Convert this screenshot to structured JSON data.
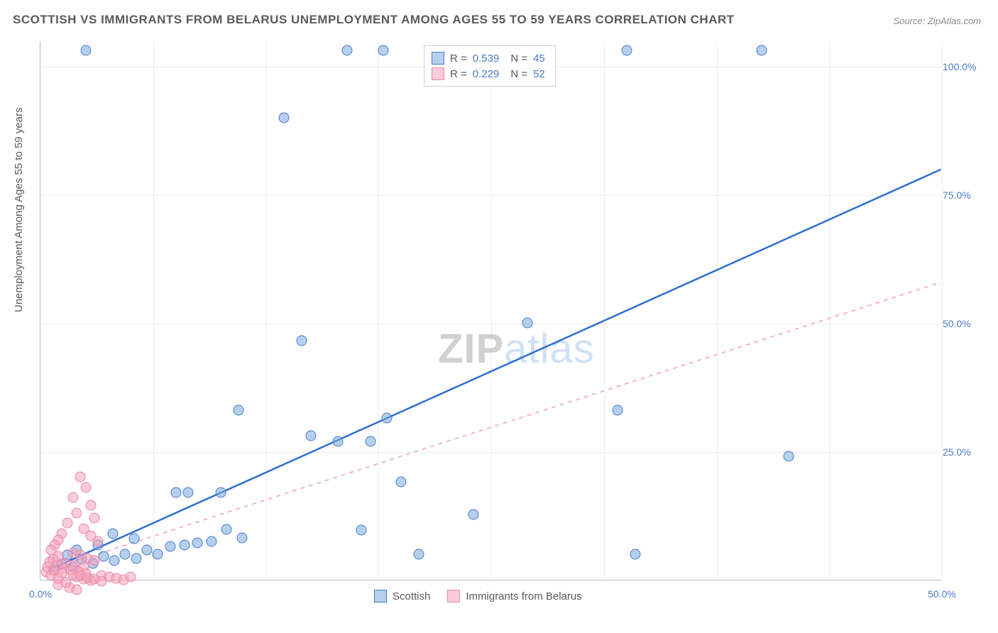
{
  "title": "SCOTTISH VS IMMIGRANTS FROM BELARUS UNEMPLOYMENT AMONG AGES 55 TO 59 YEARS CORRELATION CHART",
  "source": "Source: ZipAtlas.com",
  "ylabel": "Unemployment Among Ages 55 to 59 years",
  "watermark_a": "ZIP",
  "watermark_b": "atlas",
  "chart": {
    "type": "scatter",
    "xlim": [
      0,
      50
    ],
    "ylim": [
      0,
      105
    ],
    "xticks": [
      {
        "v": 0,
        "l": "0.0%"
      },
      {
        "v": 50,
        "l": "50.0%"
      }
    ],
    "yticks": [
      {
        "v": 25,
        "l": "25.0%"
      },
      {
        "v": 50,
        "l": "50.0%"
      },
      {
        "v": 75,
        "l": "75.0%"
      },
      {
        "v": 100,
        "l": "100.0%"
      }
    ],
    "grid_h": [
      25,
      50,
      75,
      100
    ],
    "grid_v": [
      6.25,
      12.5,
      18.75,
      25,
      31.25,
      37.5,
      43.75,
      50
    ],
    "background_color": "#ffffff",
    "grid_color": "#ececec",
    "axis_color": "#bdbdbd",
    "tick_color": "#4a7ac7",
    "marker_size": 15,
    "series": [
      {
        "name": "Scottish",
        "color_fill": "rgba(120,170,225,0.55)",
        "color_stroke": "#4a7ac7",
        "R": "0.539",
        "N": "45",
        "trend": {
          "x1": 0.5,
          "y1": 2,
          "x2": 50,
          "y2": 80,
          "width": 2.5,
          "dash": "none",
          "color": "#2f6ed1"
        },
        "points": [
          [
            17.0,
            103
          ],
          [
            19.0,
            103
          ],
          [
            32.5,
            103
          ],
          [
            40.0,
            103
          ],
          [
            2.5,
            103
          ],
          [
            13.5,
            90
          ],
          [
            27.0,
            50
          ],
          [
            14.5,
            46.5
          ],
          [
            32.0,
            33
          ],
          [
            11.0,
            33
          ],
          [
            15.0,
            28
          ],
          [
            16.5,
            27
          ],
          [
            18.3,
            27
          ],
          [
            19.2,
            31.5
          ],
          [
            41.5,
            24
          ],
          [
            20.0,
            19
          ],
          [
            24.0,
            12.7
          ],
          [
            7.5,
            17
          ],
          [
            8.2,
            17
          ],
          [
            10.0,
            17
          ],
          [
            33.0,
            5
          ],
          [
            21.0,
            5
          ],
          [
            17.8,
            9.7
          ],
          [
            0.7,
            2
          ],
          [
            1.2,
            3
          ],
          [
            1.8,
            2.5
          ],
          [
            2.3,
            4
          ],
          [
            2.9,
            3.2
          ],
          [
            3.5,
            4.5
          ],
          [
            4.1,
            3.8
          ],
          [
            4.7,
            5
          ],
          [
            5.3,
            4.2
          ],
          [
            5.9,
            5.8
          ],
          [
            6.5,
            5
          ],
          [
            7.2,
            6.5
          ],
          [
            8.0,
            6.8
          ],
          [
            8.7,
            7.2
          ],
          [
            9.5,
            7.5
          ],
          [
            10.3,
            9.8
          ],
          [
            11.2,
            8.2
          ],
          [
            4.0,
            9
          ],
          [
            5.2,
            8
          ],
          [
            3.2,
            6.8
          ],
          [
            2.0,
            5.8
          ],
          [
            1.5,
            4.8
          ]
        ]
      },
      {
        "name": "Immigrants from Belarus",
        "color_fill": "rgba(245,160,185,0.55)",
        "color_stroke": "#e58aa8",
        "R": "0.229",
        "N": "52",
        "trend": {
          "x1": 0.5,
          "y1": 2,
          "x2": 50,
          "y2": 58,
          "width": 1.5,
          "dash": "6,6",
          "color": "#e9a3b8"
        },
        "points": [
          [
            2.2,
            20
          ],
          [
            2.5,
            18
          ],
          [
            1.8,
            16
          ],
          [
            2.8,
            14.5
          ],
          [
            2.0,
            13
          ],
          [
            3.0,
            12
          ],
          [
            1.5,
            11
          ],
          [
            2.4,
            10
          ],
          [
            2.8,
            8.5
          ],
          [
            3.2,
            7.5
          ],
          [
            1.2,
            9
          ],
          [
            1.0,
            7.8
          ],
          [
            0.8,
            6.8
          ],
          [
            0.6,
            5.8
          ],
          [
            1.8,
            5.2
          ],
          [
            2.2,
            4.8
          ],
          [
            2.6,
            4.2
          ],
          [
            3.0,
            3.8
          ],
          [
            1.0,
            4.5
          ],
          [
            0.7,
            4.0
          ],
          [
            1.4,
            3.2
          ],
          [
            1.9,
            2.9
          ],
          [
            2.4,
            2.6
          ],
          [
            0.5,
            3.5
          ],
          [
            0.9,
            2.8
          ],
          [
            1.3,
            2.2
          ],
          [
            1.7,
            1.9
          ],
          [
            2.1,
            1.6
          ],
          [
            2.5,
            1.3
          ],
          [
            0.4,
            2.5
          ],
          [
            0.8,
            1.8
          ],
          [
            1.2,
            1.2
          ],
          [
            1.6,
            -1.5
          ],
          [
            2.0,
            -2
          ],
          [
            1.0,
            -1
          ],
          [
            2.0,
            0.5
          ],
          [
            2.4,
            0.2
          ],
          [
            2.8,
            -0.2
          ],
          [
            3.4,
            0.8
          ],
          [
            0.3,
            1.5
          ],
          [
            0.6,
            0.8
          ],
          [
            1.0,
            0.3
          ],
          [
            1.4,
            -0.5
          ],
          [
            1.8,
            1.0
          ],
          [
            2.2,
            0.8
          ],
          [
            2.6,
            0.4
          ],
          [
            3.0,
            0.1
          ],
          [
            3.4,
            -0.3
          ],
          [
            3.8,
            0.6
          ],
          [
            4.2,
            0.3
          ],
          [
            4.6,
            0
          ],
          [
            5.0,
            0.5
          ]
        ]
      }
    ]
  },
  "legend_bottom": [
    {
      "swatch": "blue",
      "label": "Scottish"
    },
    {
      "swatch": "pink",
      "label": "Immigrants from Belarus"
    }
  ]
}
